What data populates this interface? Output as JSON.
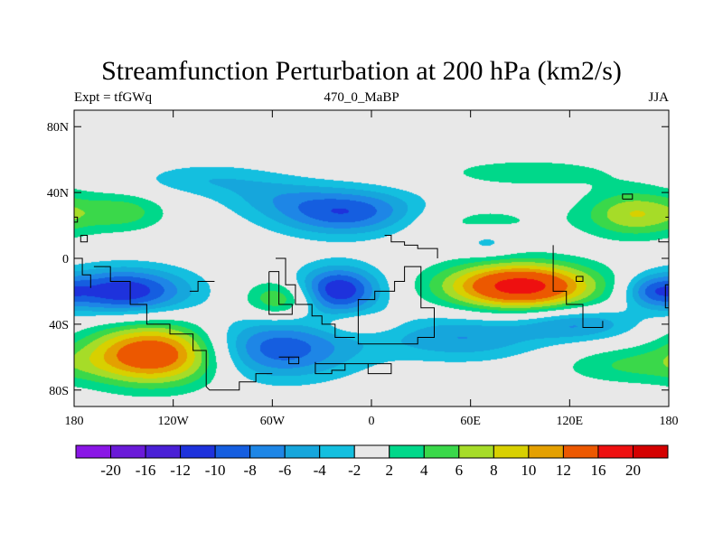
{
  "chart_data": {
    "type": "heatmap",
    "title": "Streamfunction Perturbation at 200 hPa (km2/s)",
    "subtitle_left": "Expt = tfGWq",
    "subtitle_center": "470_0_MaBP",
    "subtitle_right": "JJA",
    "xlim": [
      -180,
      180
    ],
    "ylim": [
      -90,
      90
    ],
    "x_ticks": [
      {
        "value": -180,
        "label": "180"
      },
      {
        "value": -120,
        "label": "120W"
      },
      {
        "value": -60,
        "label": "60W"
      },
      {
        "value": 0,
        "label": "0"
      },
      {
        "value": 60,
        "label": "60E"
      },
      {
        "value": 120,
        "label": "120E"
      },
      {
        "value": 180,
        "label": "180"
      }
    ],
    "y_ticks": [
      {
        "value": 80,
        "label": "80N"
      },
      {
        "value": 40,
        "label": "40N"
      },
      {
        "value": 0,
        "label": "0"
      },
      {
        "value": -40,
        "label": "40S"
      },
      {
        "value": -80,
        "label": "80S"
      }
    ],
    "levels": [
      -20,
      -16,
      -12,
      -10,
      -8,
      -6,
      -4,
      -2,
      2,
      4,
      6,
      8,
      10,
      12,
      16,
      20
    ],
    "level_labels": [
      "-20",
      "-16",
      "-12",
      "-10",
      "-8",
      "-6",
      "-4",
      "-2",
      "2",
      "4",
      "6",
      "8",
      "10",
      "12",
      "16",
      "20"
    ],
    "colors": [
      "#8a16e6",
      "#6a1ad8",
      "#4a20d6",
      "#1e32dc",
      "#155ee0",
      "#1e86e6",
      "#16a6dc",
      "#14bfdf",
      "#e8e8e8",
      "#00d88a",
      "#3ad84a",
      "#a6dc28",
      "#d8d000",
      "#e4a000",
      "#ec5800",
      "#ee1010",
      "#d40000"
    ],
    "features": [
      {
        "lon": -150,
        "lat": 28,
        "amp": 5,
        "slon": 18,
        "slat": 8
      },
      {
        "lon": -100,
        "lat": 48,
        "amp": -3.5,
        "slon": 30,
        "slat": 7
      },
      {
        "lon": -60,
        "lat": 38,
        "amp": -3,
        "slon": 25,
        "slat": 8
      },
      {
        "lon": -15,
        "lat": 28,
        "amp": -10,
        "slon": 32,
        "slat": 10
      },
      {
        "lon": 60,
        "lat": 22,
        "amp": 3,
        "slon": 35,
        "slat": 8
      },
      {
        "lon": 95,
        "lat": 52,
        "amp": 3,
        "slon": 45,
        "slat": 7
      },
      {
        "lon": 160,
        "lat": 27,
        "amp": 8,
        "slon": 22,
        "slat": 10
      },
      {
        "lon": 70,
        "lat": 10,
        "amp": -3.5,
        "slon": 12,
        "slat": 6
      },
      {
        "lon": -150,
        "lat": -20,
        "amp": -12,
        "slon": 28,
        "slat": 10
      },
      {
        "lon": -20,
        "lat": -19,
        "amp": -12,
        "slon": 18,
        "slat": 10
      },
      {
        "lon": -55,
        "lat": -25,
        "amp": 7,
        "slon": 15,
        "slat": 8
      },
      {
        "lon": -10,
        "lat": -40,
        "amp": 3.5,
        "slon": 18,
        "slat": 5
      },
      {
        "lon": 90,
        "lat": -17,
        "amp": 18,
        "slon": 32,
        "slat": 10
      },
      {
        "lon": 170,
        "lat": -20,
        "amp": -6,
        "slon": 12,
        "slat": 7
      },
      {
        "lon": 125,
        "lat": -40,
        "amp": -6,
        "slon": 25,
        "slat": 7
      },
      {
        "lon": 55,
        "lat": -48,
        "amp": -6,
        "slon": 35,
        "slat": 10
      },
      {
        "lon": -60,
        "lat": -55,
        "amp": -10,
        "slon": 35,
        "slat": 13
      },
      {
        "lon": -130,
        "lat": -58,
        "amp": 16,
        "slon": 30,
        "slat": 13
      },
      {
        "lon": 155,
        "lat": -65,
        "amp": 4,
        "slon": 30,
        "slat": 8
      }
    ],
    "coastline": [
      [
        [
          -168,
          -5
        ],
        [
          -158,
          -5
        ],
        [
          -158,
          -14
        ],
        [
          -146,
          -14
        ],
        [
          -146,
          -28
        ],
        [
          -136,
          -28
        ],
        [
          -136,
          -40
        ],
        [
          -122,
          -40
        ],
        [
          -122,
          -46
        ],
        [
          -108,
          -46
        ],
        [
          -108,
          -56
        ],
        [
          -100,
          -56
        ],
        [
          -100,
          -78
        ],
        [
          -98,
          -80
        ],
        [
          -80,
          -80
        ],
        [
          -80,
          -75
        ],
        [
          -70,
          -75
        ],
        [
          -70,
          -70
        ],
        [
          -60,
          -70
        ]
      ],
      [
        [
          -58,
          0
        ],
        [
          -52,
          0
        ],
        [
          -52,
          -16
        ],
        [
          -46,
          -16
        ],
        [
          -46,
          -28
        ],
        [
          -36,
          -28
        ],
        [
          -36,
          -35
        ],
        [
          -30,
          -35
        ],
        [
          -30,
          -40
        ],
        [
          -22,
          -40
        ],
        [
          -22,
          -48
        ],
        [
          -10,
          -48
        ]
      ],
      [
        [
          -62,
          -8
        ],
        [
          -56,
          -8
        ],
        [
          -56,
          -28
        ],
        [
          -48,
          -28
        ],
        [
          -48,
          -34
        ],
        [
          -62,
          -34
        ],
        [
          -62,
          -8
        ]
      ],
      [
        [
          -8,
          -36
        ],
        [
          -8,
          -25
        ],
        [
          2,
          -25
        ],
        [
          2,
          -20
        ],
        [
          14,
          -20
        ],
        [
          14,
          -14
        ],
        [
          20,
          -14
        ],
        [
          20,
          -5
        ],
        [
          30,
          -5
        ],
        [
          30,
          -30
        ],
        [
          38,
          -30
        ],
        [
          38,
          -48
        ],
        [
          28,
          -48
        ],
        [
          28,
          -52
        ],
        [
          -8,
          -52
        ],
        [
          -8,
          -36
        ]
      ],
      [
        [
          8,
          14
        ],
        [
          12,
          14
        ],
        [
          12,
          10
        ],
        [
          20,
          10
        ],
        [
          20,
          8
        ],
        [
          28,
          8
        ],
        [
          28,
          6
        ],
        [
          40,
          6
        ],
        [
          40,
          0
        ]
      ],
      [
        [
          -34,
          -63
        ],
        [
          -34,
          -70
        ],
        [
          -24,
          -70
        ],
        [
          -24,
          -68
        ],
        [
          -16,
          -68
        ],
        [
          -16,
          -64
        ],
        [
          -2,
          -64
        ],
        [
          -2,
          -70
        ],
        [
          12,
          -70
        ],
        [
          12,
          -64
        ],
        [
          -34,
          -64
        ]
      ],
      [
        [
          -56,
          -60
        ],
        [
          -50,
          -60
        ],
        [
          -50,
          -64
        ],
        [
          -44,
          -64
        ],
        [
          -44,
          -60
        ],
        [
          -56,
          -60
        ]
      ],
      [
        [
          110,
          8
        ],
        [
          110,
          -20
        ],
        [
          118,
          -20
        ],
        [
          118,
          -28
        ],
        [
          128,
          -28
        ],
        [
          128,
          -42
        ],
        [
          140,
          -42
        ],
        [
          140,
          -38
        ]
      ],
      [
        [
          124,
          -11
        ],
        [
          128,
          -11
        ],
        [
          128,
          -14
        ],
        [
          124,
          -14
        ],
        [
          124,
          -11
        ]
      ],
      [
        [
          152,
          36
        ],
        [
          152,
          39
        ],
        [
          158,
          39
        ],
        [
          158,
          36
        ],
        [
          152,
          36
        ]
      ],
      [
        [
          -182,
          25
        ],
        [
          -178,
          25
        ],
        [
          -178,
          22
        ],
        [
          -182,
          22
        ]
      ],
      [
        [
          -176,
          14
        ],
        [
          -176,
          10
        ],
        [
          -172,
          10
        ],
        [
          -172,
          14
        ],
        [
          -176,
          14
        ]
      ],
      [
        [
          178,
          25
        ],
        [
          182,
          25
        ]
      ],
      [
        [
          174,
          12
        ],
        [
          174,
          10
        ],
        [
          182,
          10
        ]
      ],
      [
        [
          182,
          -16
        ],
        [
          178,
          -16
        ],
        [
          178,
          -30
        ],
        [
          182,
          -30
        ]
      ],
      [
        [
          -182,
          0
        ],
        [
          -175,
          0
        ],
        [
          -175,
          -10
        ],
        [
          -170,
          -10
        ],
        [
          -170,
          -18
        ]
      ],
      [
        [
          -110,
          -20
        ],
        [
          -105,
          -20
        ],
        [
          -105,
          -14
        ],
        [
          -95,
          -14
        ]
      ]
    ]
  }
}
